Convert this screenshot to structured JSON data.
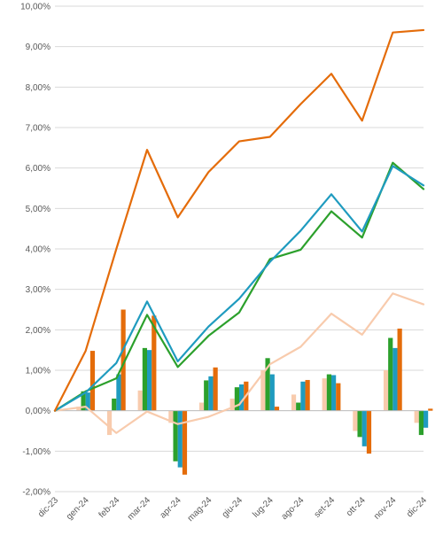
{
  "chart_data": {
    "type": "bar",
    "title": "",
    "xlabel": "",
    "ylabel": "",
    "grid": true,
    "ylim": [
      -0.02,
      0.1
    ],
    "y_tick_values": [
      -0.02,
      -0.01,
      0,
      0.01,
      0.02,
      0.03,
      0.04,
      0.05,
      0.06,
      0.07,
      0.08,
      0.09,
      0.1
    ],
    "y_tick_labels": [
      "-2,00%",
      "-1,00%",
      "0,00%",
      "1,00%",
      "2,00%",
      "3,00%",
      "4,00%",
      "5,00%",
      "6,00%",
      "7,00%",
      "8,00%",
      "9,00%",
      "10,00%"
    ],
    "categories": [
      "dic-23",
      "gen-24",
      "feb-24",
      "mar-24",
      "apr-24",
      "mag-24",
      "giu-24",
      "lug-24",
      "ago-24",
      "set-24",
      "ott-24",
      "nov-24",
      "dic-24"
    ],
    "bar_series": [
      {
        "color": "#f8cbad",
        "values": [
          0,
          0.001,
          -0.006,
          0.005,
          -0.003,
          0.002,
          0.003,
          0.01,
          0.004,
          0.008,
          -0.005,
          0.01,
          -0.003
        ]
      },
      {
        "color": "#2ca02c",
        "values": [
          0,
          0.0048,
          0.003,
          0.0155,
          -0.0125,
          0.0075,
          0.0058,
          0.013,
          0.002,
          0.009,
          -0.0065,
          0.018,
          -0.006
        ]
      },
      {
        "color": "#1f9bbf",
        "values": [
          0,
          0.0045,
          0.009,
          0.015,
          -0.014,
          0.0085,
          0.0065,
          0.009,
          0.0072,
          0.0088,
          -0.0088,
          0.0155,
          -0.0042
        ]
      },
      {
        "color": "#e46c0a",
        "values": [
          0,
          0.0148,
          0.025,
          0.0235,
          -0.0158,
          0.0107,
          0.0072,
          0.001,
          0.0076,
          0.0068,
          -0.0106,
          0.0203,
          0.0005
        ]
      }
    ],
    "line_series": [
      {
        "color": "#f8cbad",
        "values": [
          0,
          0.001,
          -0.0055,
          -0.0002,
          -0.0033,
          -0.0015,
          0.0015,
          0.0115,
          0.0158,
          0.024,
          0.0188,
          0.029,
          0.0263
        ]
      },
      {
        "color": "#2ca02c",
        "values": [
          0,
          0.0048,
          0.008,
          0.0237,
          0.0108,
          0.0185,
          0.0243,
          0.0375,
          0.0398,
          0.0493,
          0.0428,
          0.0613,
          0.0548
        ]
      },
      {
        "color": "#1f9bbf",
        "values": [
          0,
          0.0045,
          0.0118,
          0.027,
          0.0122,
          0.0208,
          0.0277,
          0.0368,
          0.0445,
          0.0535,
          0.0443,
          0.0605,
          0.0557
        ]
      },
      {
        "color": "#e46c0a",
        "values": [
          0,
          0.0148,
          0.04,
          0.0645,
          0.0478,
          0.059,
          0.0666,
          0.0677,
          0.0758,
          0.0833,
          0.0717,
          0.0935,
          0.0941
        ]
      }
    ]
  }
}
